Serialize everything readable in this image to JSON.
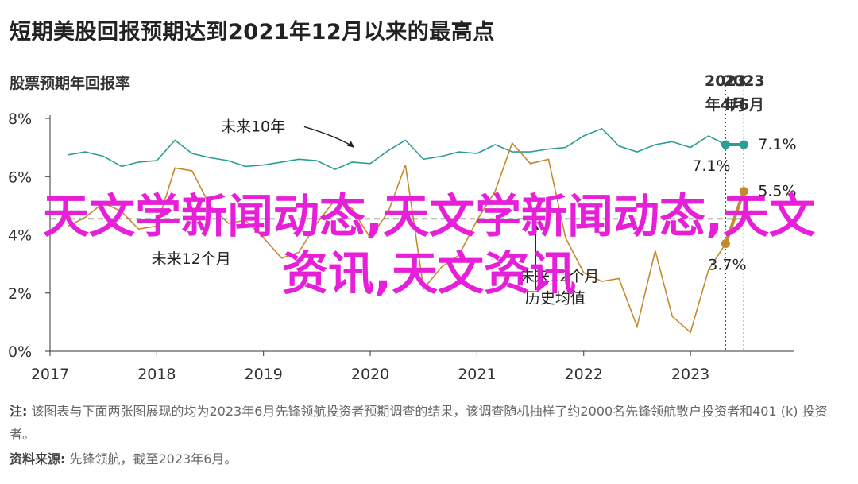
{
  "title": "短期美股回报预期达到2021年12月以来的最高点",
  "subtitle": "股票预期年回报率",
  "note": {
    "label": "注:",
    "text": "该图表与下面两张图展现的均为2023年6月先锋领航投资者预期调查的结果，该调查随机抽样了约2000名先锋领航散户投资者和401 (k) 投资者。"
  },
  "source": {
    "label": "资料来源:",
    "text": "先锋领航，截至2023年6月。"
  },
  "overlay_text": "天文学新闻动态,天文学新闻动态,天文资讯,天文资讯",
  "colors": {
    "teal": "#2a9d96",
    "gold": "#c48a2e",
    "gray_line": "#555555",
    "overlay": "#e81fd8"
  },
  "chart_data": {
    "type": "line",
    "ylim": [
      0,
      8
    ],
    "yticks": [
      "0%",
      "2%",
      "4%",
      "6%",
      "8%"
    ],
    "ytick_values": [
      0,
      2,
      4,
      6,
      8
    ],
    "xlim": [
      2017,
      2023.9
    ],
    "xticks": [
      "2017",
      "2018",
      "2019",
      "2020",
      "2021",
      "2022",
      "2023"
    ],
    "xtick_values": [
      2017,
      2018,
      2019,
      2020,
      2021,
      2022,
      2023
    ],
    "grid": false,
    "series": [
      {
        "name": "未来10年",
        "color": "#2a9d96",
        "x": [
          2017.17,
          2017.33,
          2017.5,
          2017.67,
          2017.83,
          2018.0,
          2018.17,
          2018.33,
          2018.5,
          2018.67,
          2018.83,
          2019.0,
          2019.17,
          2019.33,
          2019.5,
          2019.67,
          2019.83,
          2020.0,
          2020.17,
          2020.33,
          2020.5,
          2020.67,
          2020.83,
          2021.0,
          2021.17,
          2021.33,
          2021.5,
          2021.67,
          2021.83,
          2022.0,
          2022.17,
          2022.33,
          2022.5,
          2022.67,
          2022.83,
          2023.0,
          2023.17,
          2023.33
        ],
        "y": [
          6.75,
          6.85,
          6.7,
          6.35,
          6.5,
          6.55,
          7.25,
          6.8,
          6.65,
          6.55,
          6.35,
          6.4,
          6.5,
          6.6,
          6.55,
          6.25,
          6.5,
          6.45,
          6.9,
          7.25,
          6.6,
          6.7,
          6.85,
          6.8,
          7.1,
          6.85,
          6.85,
          6.95,
          7.0,
          7.4,
          7.65,
          7.05,
          6.85,
          7.1,
          7.2,
          7.0,
          7.4,
          7.1
        ]
      },
      {
        "name": "未来12个月",
        "color": "#c48a2e",
        "x": [
          2017.17,
          2017.33,
          2017.5,
          2017.67,
          2017.83,
          2018.0,
          2018.17,
          2018.33,
          2018.5,
          2018.67,
          2018.83,
          2019.0,
          2019.17,
          2019.33,
          2019.5,
          2019.67,
          2019.83,
          2020.0,
          2020.17,
          2020.33,
          2020.5,
          2020.67,
          2020.83,
          2021.0,
          2021.17,
          2021.33,
          2021.5,
          2021.67,
          2021.83,
          2022.0,
          2022.17,
          2022.33,
          2022.5,
          2022.67,
          2022.83,
          2023.0,
          2023.17,
          2023.33
        ],
        "y": [
          4.3,
          4.6,
          5.1,
          4.8,
          4.2,
          4.3,
          6.3,
          6.2,
          5.0,
          4.4,
          4.5,
          3.9,
          3.2,
          3.4,
          4.4,
          5.2,
          4.9,
          3.9,
          4.8,
          6.4,
          2.15,
          2.9,
          3.3,
          4.5,
          5.5,
          7.15,
          6.45,
          6.6,
          3.9,
          2.7,
          2.4,
          2.5,
          0.85,
          3.45,
          1.2,
          0.65,
          2.8,
          3.7
        ]
      },
      {
        "name": "历史均值",
        "color": "#555555",
        "dashed": true,
        "x": [
          2017.0,
          2023.48
        ],
        "y": [
          4.55,
          4.55
        ]
      }
    ],
    "highlight": {
      "teal": {
        "x": [
          2023.33,
          2023.5
        ],
        "y": [
          7.1,
          7.1
        ],
        "labels": [
          "7.1%",
          "7.1%"
        ]
      },
      "gold": {
        "x": [
          2023.33,
          2023.5
        ],
        "y": [
          3.7,
          5.5
        ],
        "labels": [
          "3.7%",
          "5.5%"
        ]
      }
    },
    "period_labels": [
      {
        "x": 2023.33,
        "text": [
          "2023",
          "年4月"
        ]
      },
      {
        "x": 2023.5,
        "text": [
          "2023",
          "年6月"
        ]
      }
    ],
    "annotations": [
      {
        "text": "未来10年",
        "x": 2018.6,
        "y": 7.55
      },
      {
        "text": "未来12个月",
        "x": 2017.95,
        "y": 3.0
      },
      {
        "text": "未来12个月",
        "x": 2021.4,
        "y": 2.4
      },
      {
        "text": "历史均值",
        "x": 2021.45,
        "y": 1.65
      }
    ]
  }
}
